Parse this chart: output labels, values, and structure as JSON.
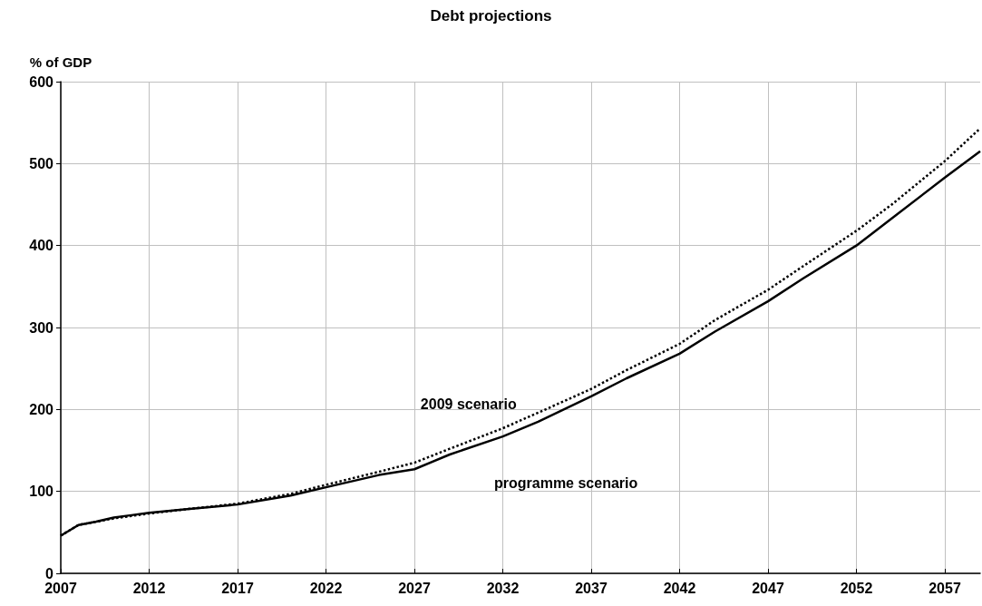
{
  "chart_data": {
    "type": "line",
    "title": "Debt projections",
    "ylabel": "% of GDP",
    "x": [
      2007,
      2008,
      2009,
      2010,
      2011,
      2012,
      2014,
      2017,
      2020,
      2022,
      2025,
      2027,
      2029,
      2032,
      2034,
      2037,
      2039,
      2042,
      2044,
      2047,
      2049,
      2052,
      2054,
      2057,
      2059
    ],
    "series": [
      {
        "color": "#000000",
        "line_style": "solid",
        "values": [
          46,
          59,
          63,
          68,
          71,
          74,
          78,
          84,
          95,
          105,
          120,
          127,
          145,
          167,
          185,
          216,
          238,
          268,
          295,
          332,
          360,
          400,
          433,
          483,
          515
        ]
      },
      {
        "color": "#000000",
        "line_style": "dotted",
        "values": [
          46,
          59,
          63,
          67,
          70,
          73,
          78,
          85,
          97,
          108,
          124,
          135,
          152,
          177,
          196,
          225,
          248,
          280,
          309,
          346,
          375,
          418,
          450,
          503,
          543
        ]
      }
    ],
    "xlim": [
      2007,
      2059
    ],
    "xticks": [
      2007,
      2012,
      2017,
      2022,
      2027,
      2032,
      2037,
      2042,
      2047,
      2052,
      2057
    ],
    "ylim": [
      0,
      600
    ],
    "yticks": [
      0,
      100,
      200,
      300,
      400,
      500,
      600
    ],
    "annotations": [
      "2009 scenario",
      "programme scenario"
    ],
    "grid": true,
    "marker": "none"
  }
}
